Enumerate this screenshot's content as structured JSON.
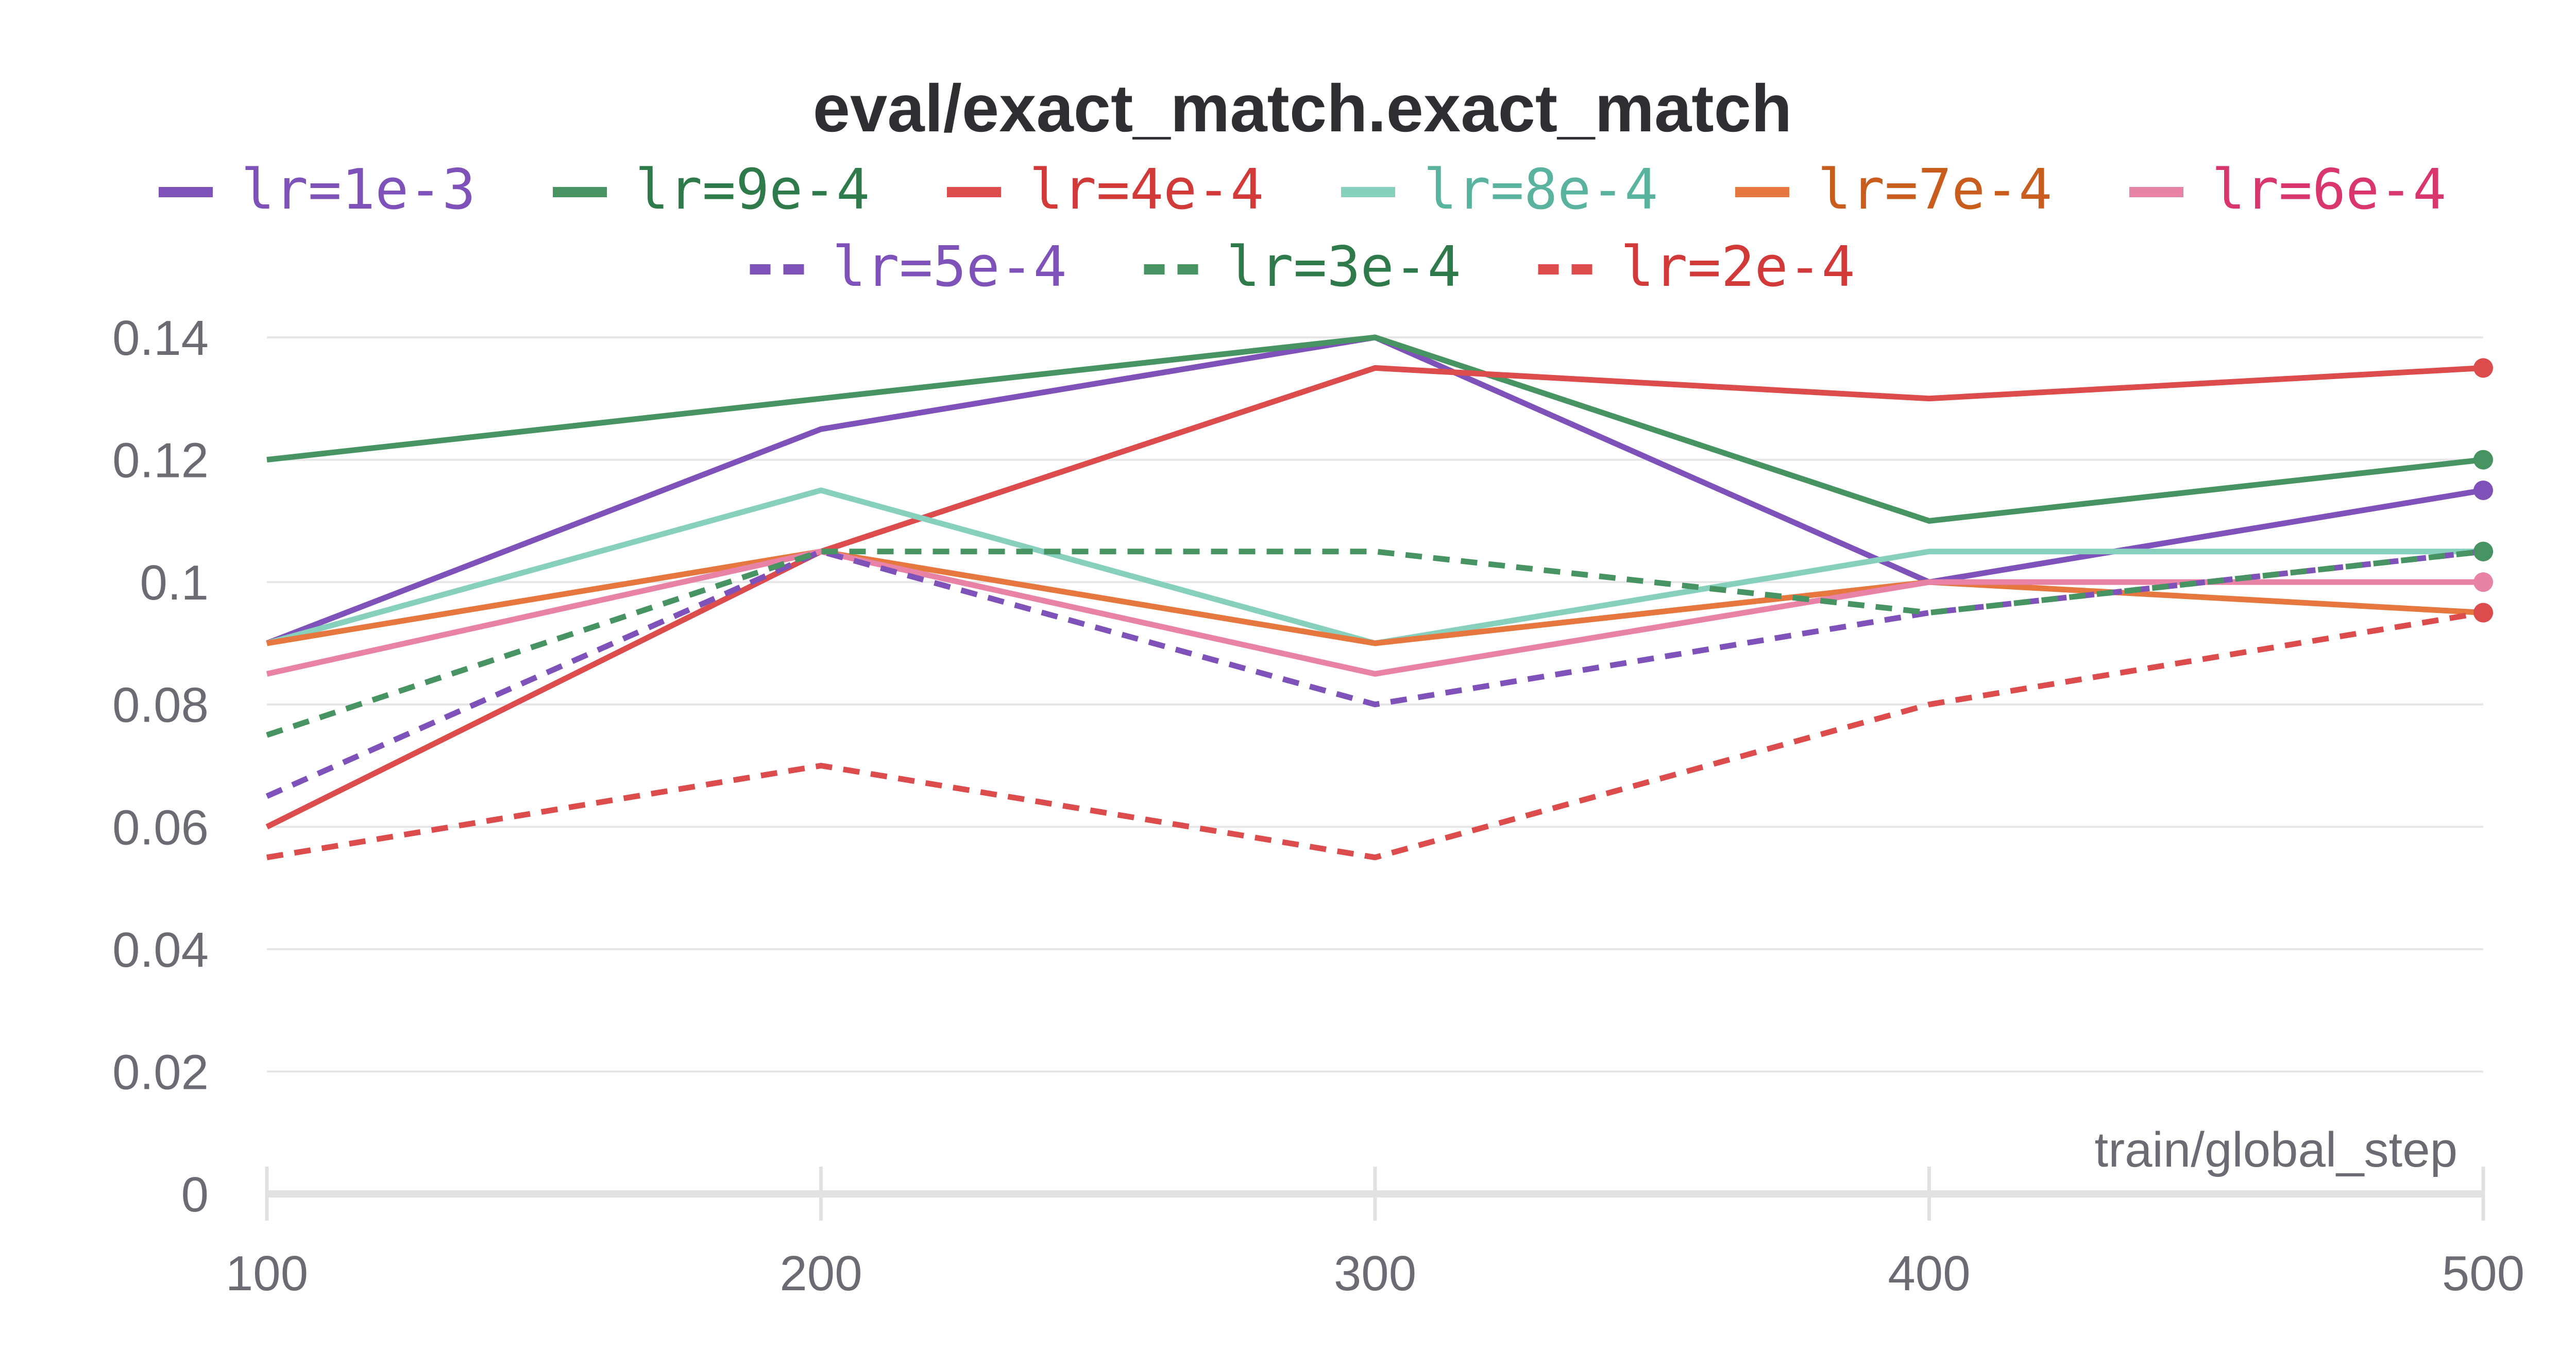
{
  "chart_data": {
    "type": "line",
    "title": "eval/exact_match.exact_match",
    "xlabel": "train/global_step",
    "ylabel": "",
    "x": [
      100,
      200,
      300,
      400,
      500
    ],
    "xlim": [
      100,
      500
    ],
    "ylim": [
      0,
      0.14
    ],
    "x_ticks": [
      "100",
      "200",
      "300",
      "400",
      "500"
    ],
    "y_ticks": [
      "0",
      "0.02",
      "0.04",
      "0.06",
      "0.08",
      "0.1",
      "0.12",
      "0.14"
    ],
    "grid": true,
    "legend_position": "top",
    "series": [
      {
        "name": "lr=1e-3",
        "color": "#7e52b8",
        "text_color": "#7e52b8",
        "dash": "solid",
        "values": [
          0.09,
          0.125,
          0.14,
          0.1,
          0.115
        ]
      },
      {
        "name": "lr=9e-4",
        "color": "#479362",
        "text_color": "#2f7a4a",
        "dash": "solid",
        "values": [
          0.12,
          0.13,
          0.14,
          0.11,
          0.12
        ]
      },
      {
        "name": "lr=4e-4",
        "color": "#dc4c4c",
        "text_color": "#d23a3a",
        "dash": "solid",
        "values": [
          0.06,
          0.105,
          0.135,
          0.13,
          0.135
        ]
      },
      {
        "name": "lr=8e-4",
        "color": "#87d0bd",
        "text_color": "#5ab39e",
        "dash": "solid",
        "values": [
          0.09,
          0.115,
          0.09,
          0.105,
          0.105
        ]
      },
      {
        "name": "lr=7e-4",
        "color": "#e5773f",
        "text_color": "#c85d1e",
        "dash": "solid",
        "values": [
          0.09,
          0.105,
          0.09,
          0.1,
          0.095
        ]
      },
      {
        "name": "lr=6e-4",
        "color": "#e882a6",
        "text_color": "#d9366f",
        "dash": "solid",
        "values": [
          0.085,
          0.105,
          0.085,
          0.1,
          0.1
        ]
      },
      {
        "name": "lr=5e-4",
        "color": "#7e52b8",
        "text_color": "#7e52b8",
        "dash": "dashed",
        "values": [
          0.065,
          0.105,
          0.08,
          0.095,
          0.105
        ]
      },
      {
        "name": "lr=3e-4",
        "color": "#479362",
        "text_color": "#2f7a4a",
        "dash": "dashed",
        "values": [
          0.075,
          0.105,
          0.105,
          0.095,
          0.105
        ]
      },
      {
        "name": "lr=2e-4",
        "color": "#dc4c4c",
        "text_color": "#d23a3a",
        "dash": "dashed",
        "values": [
          0.055,
          0.07,
          0.055,
          0.08,
          0.095
        ]
      }
    ]
  }
}
